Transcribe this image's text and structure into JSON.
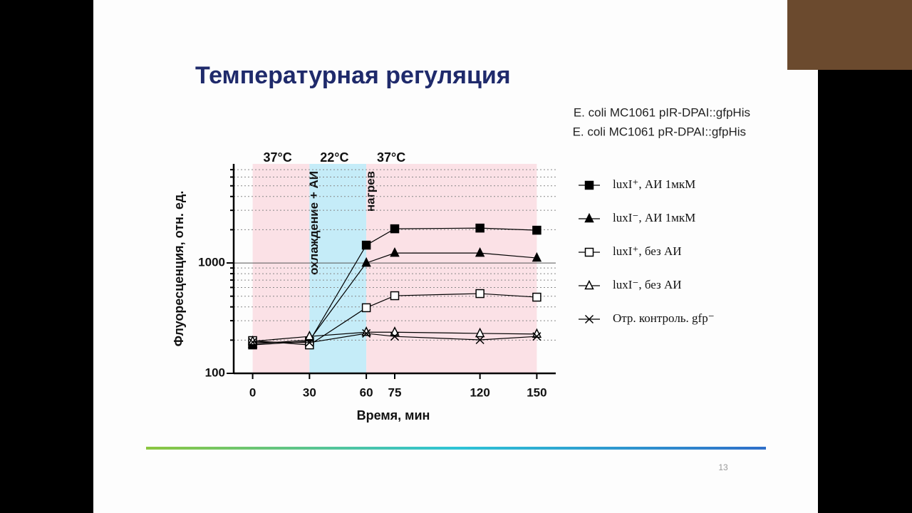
{
  "slide": {
    "title": "Температурная регуляция",
    "strains": [
      "E. coli MC1061 pIR-DPAI::gfpHis",
      "E. coli MC1061 pR-DPAI::gfpHis"
    ],
    "page_number": "13"
  },
  "chart_data": {
    "type": "line",
    "x_label": "Время, мин",
    "y_label": "Флуоресценция, отн. ед.",
    "x": [
      0,
      30,
      60,
      75,
      120,
      150
    ],
    "xlim": [
      -10,
      160
    ],
    "xticks": [
      0,
      30,
      60,
      75,
      120,
      150
    ],
    "ylim": [
      100,
      7900
    ],
    "yticks": [
      100,
      1000
    ],
    "log_y": true,
    "grid": true,
    "yminor_ticks": [
      200,
      300,
      400,
      500,
      600,
      700,
      800,
      900,
      2000,
      3000,
      4000,
      5000,
      6000,
      7000
    ],
    "regions": [
      {
        "from": 0,
        "to": 30,
        "label": "37°C",
        "color": "#fbe1e6"
      },
      {
        "from": 30,
        "to": 60,
        "label": "22°C",
        "color": "#c5ecf8",
        "note": "охлаждение + АИ"
      },
      {
        "from": 60,
        "to": 150,
        "label": "37°C",
        "color": "#fbe1e6",
        "note": "нагрев"
      }
    ],
    "legend": "right",
    "series": [
      {
        "name": "luxI⁺, АИ 1мкМ",
        "color": "#000000",
        "marker": "square-filled",
        "values": [
          181,
          195,
          1450,
          2040,
          2070,
          1980
        ]
      },
      {
        "name": "luxI⁻, АИ 1мкМ",
        "color": "#000000",
        "marker": "triangle-filled",
        "values": [
          185,
          200,
          1000,
          1230,
          1230,
          1110
        ]
      },
      {
        "name": "luxI⁺, без АИ",
        "color": "#000000",
        "marker": "square-open",
        "values": [
          198,
          181,
          393,
          505,
          528,
          490
        ]
      },
      {
        "name": "luxI⁻, без АИ",
        "color": "#000000",
        "marker": "triangle-open",
        "values": [
          195,
          216,
          236,
          236,
          230,
          227
        ]
      },
      {
        "name": "Отр. контроль. gfp⁻",
        "color": "#000000",
        "marker": "x",
        "values": [
          192,
          190,
          230,
          216,
          201,
          216
        ]
      }
    ]
  }
}
